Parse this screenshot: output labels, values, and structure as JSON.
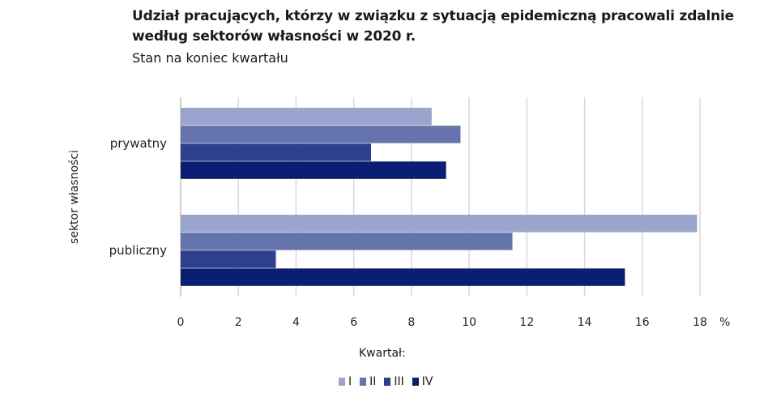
{
  "chart_data": {
    "type": "bar",
    "orientation": "horizontal",
    "title": "Udział pracujących, którzy w związku z sytuacją epidemiczną pracowali zdalnie według sektorów własności w 2020 r.",
    "subtitle": "Stan na koniec kwartału",
    "ylabel": "sektor własności",
    "x_unit": "%",
    "categories": [
      "prywatny",
      "publiczny"
    ],
    "xlim": [
      0,
      18
    ],
    "x_ticks": [
      "0",
      "2",
      "4",
      "6",
      "8",
      "10",
      "12",
      "14",
      "16",
      "18"
    ],
    "grid": "vertical",
    "legend_title": "Kwartał:",
    "legend_position": "bottom",
    "series": [
      {
        "name": "I",
        "color": "#9aa4cc",
        "values": [
          8.7,
          17.9
        ]
      },
      {
        "name": "II",
        "color": "#6674ad",
        "values": [
          9.7,
          11.5
        ]
      },
      {
        "name": "III",
        "color": "#2e3f8f",
        "values": [
          6.6,
          3.3
        ]
      },
      {
        "name": "IV",
        "color": "#0a1e73",
        "values": [
          9.2,
          15.4
        ]
      }
    ]
  }
}
